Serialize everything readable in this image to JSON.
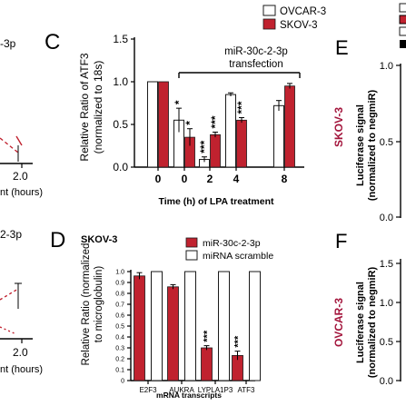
{
  "page": {
    "left_top_snippet_label": "-3p",
    "left_top_xtick": "2.0",
    "left_top_xlabel": "nt (hours)",
    "left_bottom_snippet_label": "2-3p",
    "left_bottom_xtick": "2.0",
    "left_bottom_xlabel": "nt (hours)"
  },
  "colors": {
    "red": "#c0222f",
    "white": "#ffffff",
    "maroon": "#a3143b"
  },
  "panelC": {
    "letter": "C",
    "legend": [
      "OVCAR-3",
      "SKOV-3"
    ],
    "annotation_line1": "miR-30c-2-3p",
    "annotation_line2": "transfection",
    "ylabel_line1": "Relative Ratio of ATF3",
    "ylabel_line2": "(normalized to 18s)",
    "xlabel": "Time (h) of LPA treatment",
    "yticks": [
      "0.0",
      "0.5",
      "1.0",
      "1.5"
    ]
  },
  "panelD": {
    "letter": "D",
    "subtitle": "SKOV-3",
    "legend": [
      "miR-30c-2-3p",
      "miRNA scramble"
    ],
    "ylabel_line1": "Relative Ratio (normalized",
    "ylabel_line2": "to microglobulin)",
    "xlabel": "mRNA transcripts",
    "yticks": [
      "0",
      "0.1",
      "0.2",
      "0.3",
      "0.4",
      "0.5",
      "0.6",
      "0.7",
      "0.8",
      "0.9",
      "1.0"
    ]
  },
  "panelE": {
    "letter": "E",
    "cell": "SKOV-3",
    "ylabel_line1": "Luciferase signal",
    "ylabel_line2": "(normalized to negmiR)",
    "yticks": [
      "0.0",
      "0.5",
      "1.0"
    ]
  },
  "panelF": {
    "letter": "F",
    "cell": "OVCAR-3",
    "ylabel_line1": "Luciferase signal",
    "ylabel_line2": "(normalized to negmiR)",
    "yticks": [
      "0.0",
      "0.5",
      "1.0",
      "1.5"
    ]
  },
  "chart_data": [
    {
      "type": "bar",
      "panel": "C",
      "title": "",
      "xlabel": "Time (h) of LPA treatment",
      "ylabel": "Relative Ratio of ATF3 (normalized to 18s)",
      "ylim": [
        0,
        1.5
      ],
      "categories": [
        "0",
        "0",
        "2",
        "4",
        "8"
      ],
      "series": [
        {
          "name": "OVCAR-3",
          "values": [
            1.0,
            0.55,
            0.09,
            0.85,
            0.72
          ],
          "errors": [
            0,
            0.14,
            0.03,
            0.02,
            0.06
          ],
          "significance": [
            "",
            "*",
            "***",
            "",
            ""
          ]
        },
        {
          "name": "SKOV-3",
          "values": [
            1.0,
            0.35,
            0.38,
            0.55,
            0.95
          ],
          "errors": [
            0,
            0.1,
            0.03,
            0.03,
            0.03
          ],
          "significance": [
            "",
            "*",
            "***",
            "***",
            ""
          ]
        }
      ]
    },
    {
      "type": "bar",
      "panel": "D",
      "title": "SKOV-3",
      "xlabel": "mRNA transcripts",
      "ylabel": "Relative Ratio (normalized to microglobulin)",
      "ylim": [
        0,
        1.0
      ],
      "categories": [
        "E2F3",
        "AUKRA",
        "LYPLA1P3",
        "ATF3"
      ],
      "series": [
        {
          "name": "miR-30c-2-3p",
          "values": [
            0.96,
            0.86,
            0.3,
            0.23
          ],
          "errors": [
            0.03,
            0.02,
            0.02,
            0.04
          ],
          "significance": [
            "",
            "",
            "***",
            "***"
          ]
        },
        {
          "name": "miRNA scramble",
          "values": [
            1.0,
            1.0,
            1.0,
            1.0
          ],
          "errors": [
            0,
            0,
            0,
            0
          ],
          "significance": [
            "",
            "",
            "",
            ""
          ]
        }
      ]
    }
  ]
}
